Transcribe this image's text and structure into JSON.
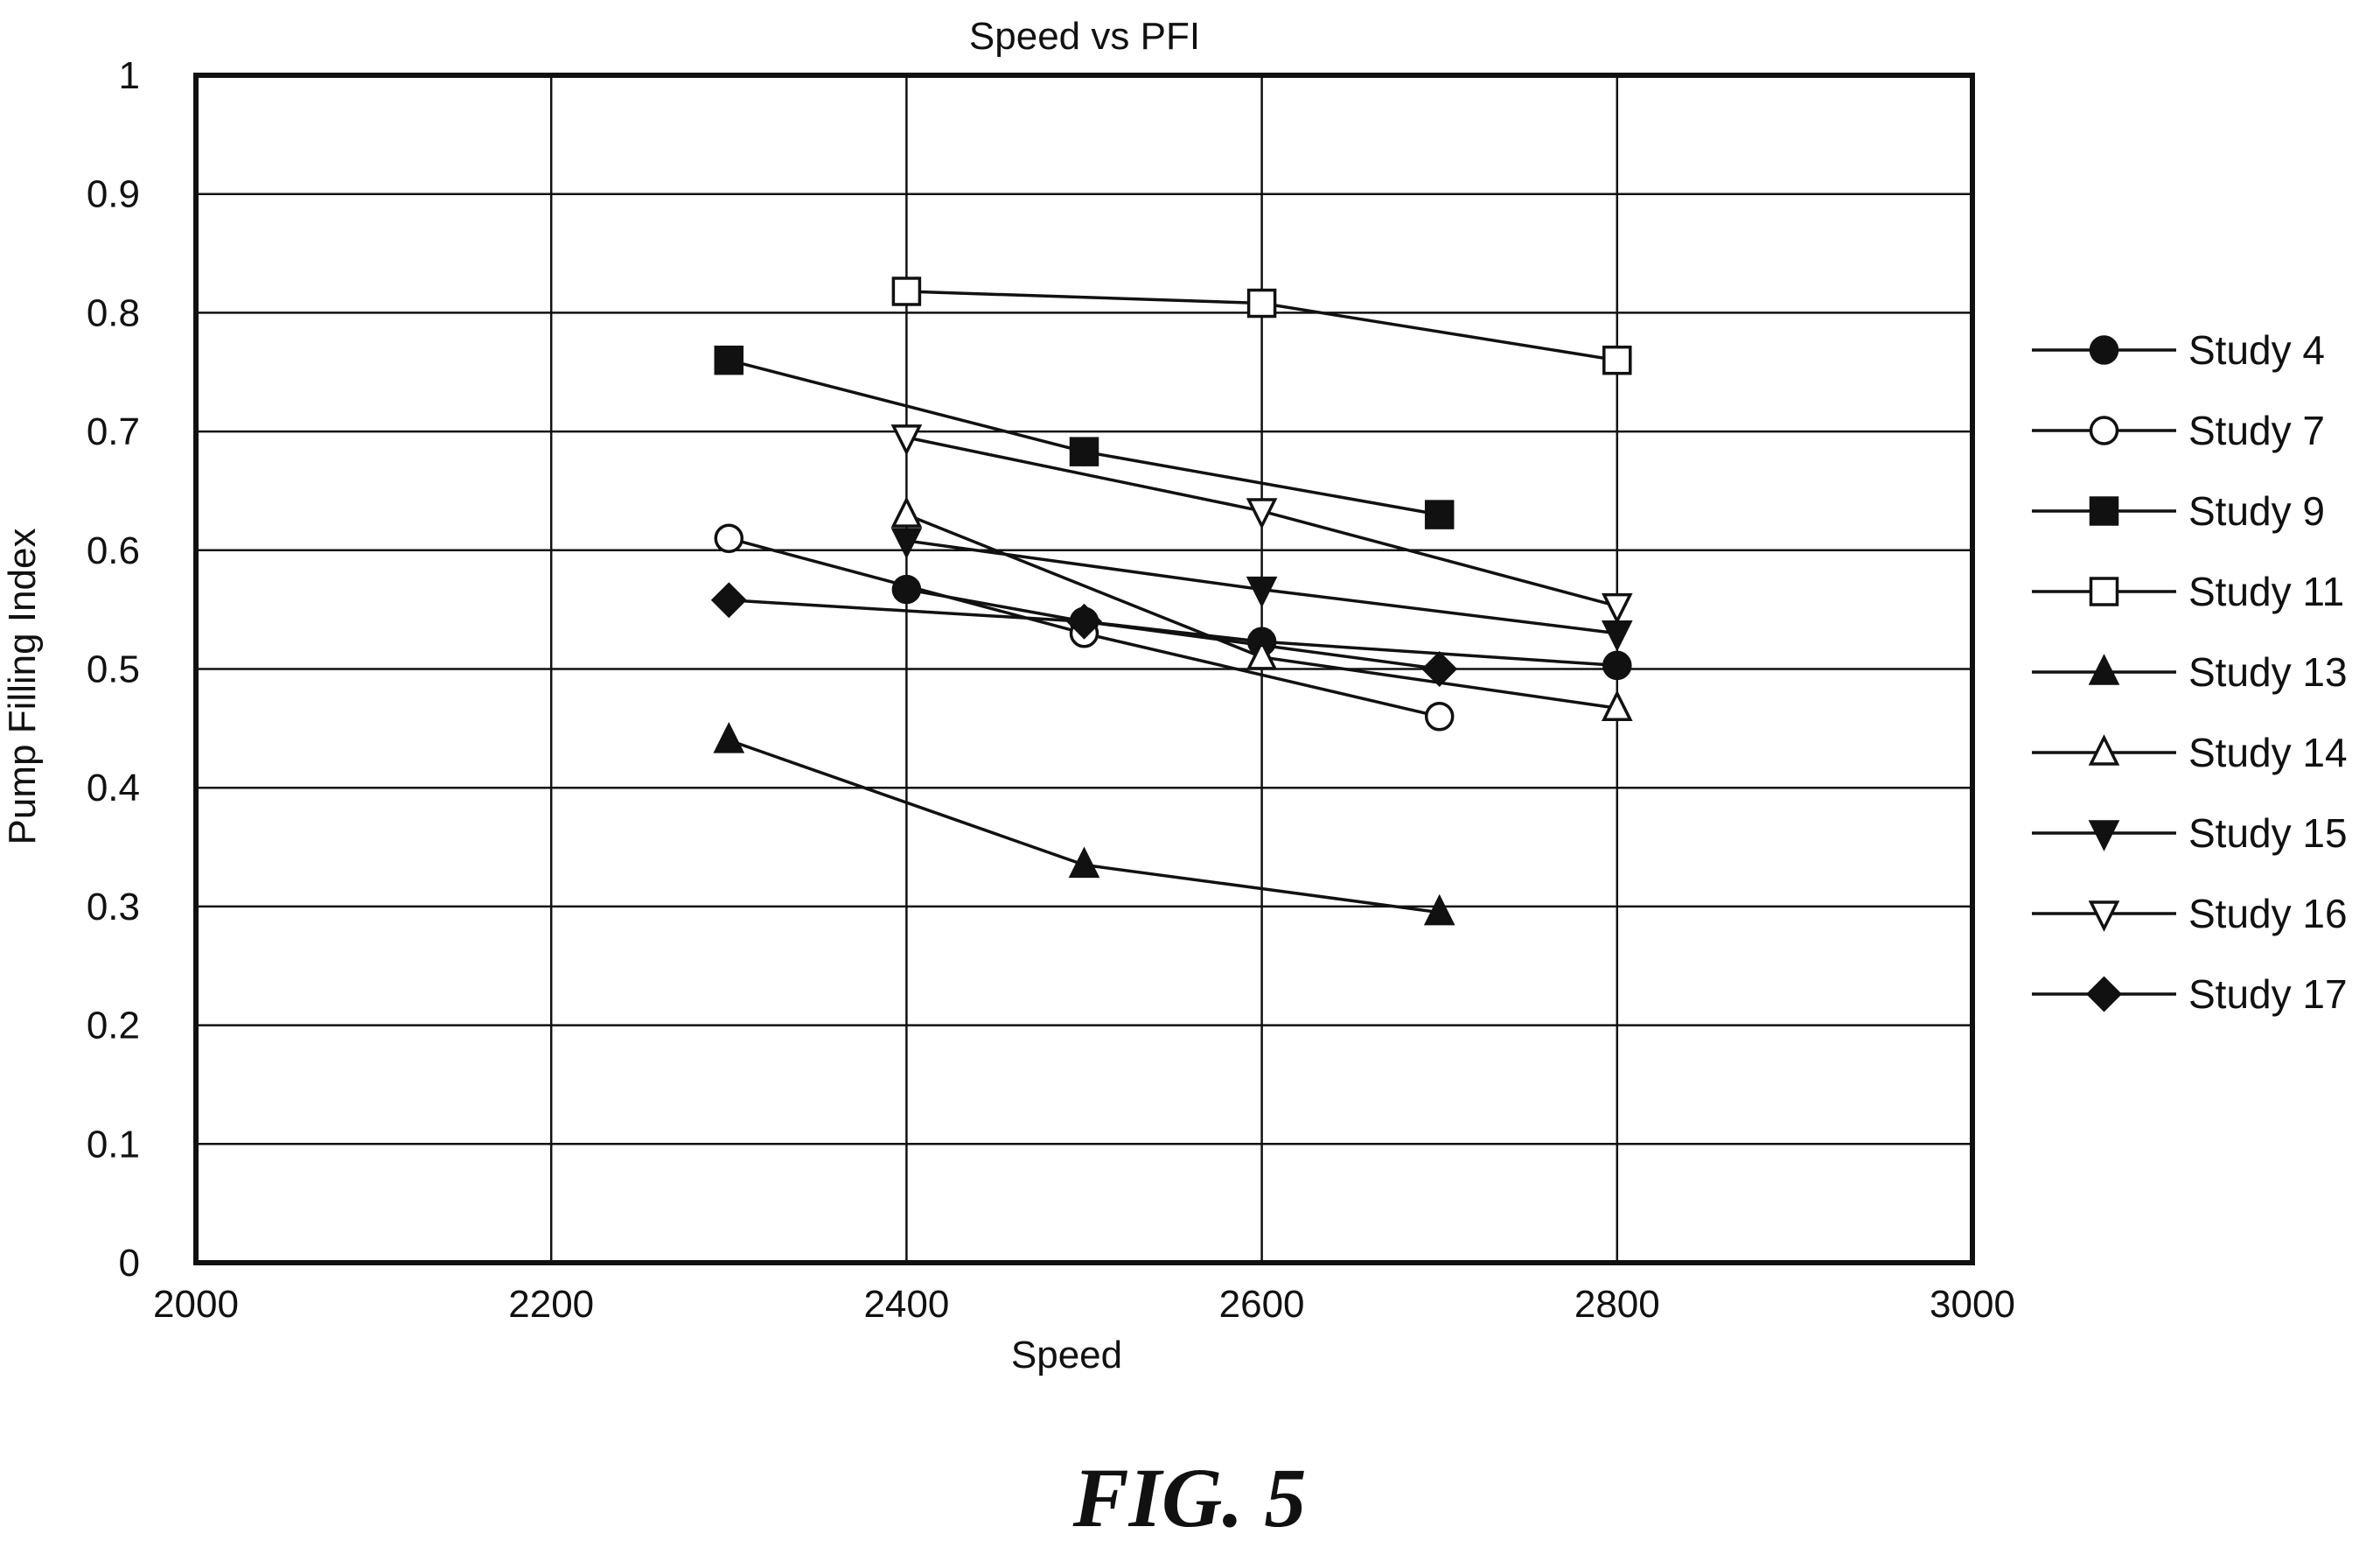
{
  "figure_caption": "FIG. 5",
  "chart_data": {
    "type": "line",
    "title": "Speed vs PFI",
    "xlabel": "Speed",
    "ylabel": "Pump Filling Index",
    "xlim": [
      2000,
      3000
    ],
    "ylim": [
      0,
      1
    ],
    "x_ticks": [
      "2000",
      "2200",
      "2400",
      "2600",
      "2800",
      "3000"
    ],
    "y_ticks": [
      "0",
      "0.1",
      "0.2",
      "0.3",
      "0.4",
      "0.5",
      "0.6",
      "0.7",
      "0.8",
      "0.9",
      "1"
    ],
    "grid": true,
    "legend_position": "right",
    "series": [
      {
        "name": "Study 4",
        "marker": "circle-filled",
        "x": [
          2400,
          2500,
          2600,
          2800
        ],
        "y": [
          0.567,
          0.54,
          0.523,
          0.503
        ]
      },
      {
        "name": "Study 7",
        "marker": "circle-open",
        "x": [
          2300,
          2500,
          2700
        ],
        "y": [
          0.61,
          0.53,
          0.46
        ]
      },
      {
        "name": "Study 9",
        "marker": "square-filled",
        "x": [
          2300,
          2500,
          2700
        ],
        "y": [
          0.76,
          0.683,
          0.63
        ]
      },
      {
        "name": "Study 11",
        "marker": "square-open",
        "x": [
          2400,
          2600,
          2800
        ],
        "y": [
          0.818,
          0.808,
          0.76
        ]
      },
      {
        "name": "Study 13",
        "marker": "triangle-up-filled",
        "x": [
          2300,
          2500,
          2700
        ],
        "y": [
          0.44,
          0.335,
          0.295
        ]
      },
      {
        "name": "Study 14",
        "marker": "triangle-up-open",
        "x": [
          2400,
          2600,
          2800
        ],
        "y": [
          0.63,
          0.51,
          0.467
        ]
      },
      {
        "name": "Study 15",
        "marker": "triangle-down-filled",
        "x": [
          2400,
          2600,
          2800
        ],
        "y": [
          0.608,
          0.567,
          0.53
        ]
      },
      {
        "name": "Study 16",
        "marker": "triangle-down-open",
        "x": [
          2400,
          2600,
          2800
        ],
        "y": [
          0.695,
          0.633,
          0.553
        ]
      },
      {
        "name": "Study 17",
        "marker": "diamond-filled",
        "x": [
          2300,
          2500,
          2700
        ],
        "y": [
          0.558,
          0.54,
          0.5
        ]
      }
    ]
  }
}
